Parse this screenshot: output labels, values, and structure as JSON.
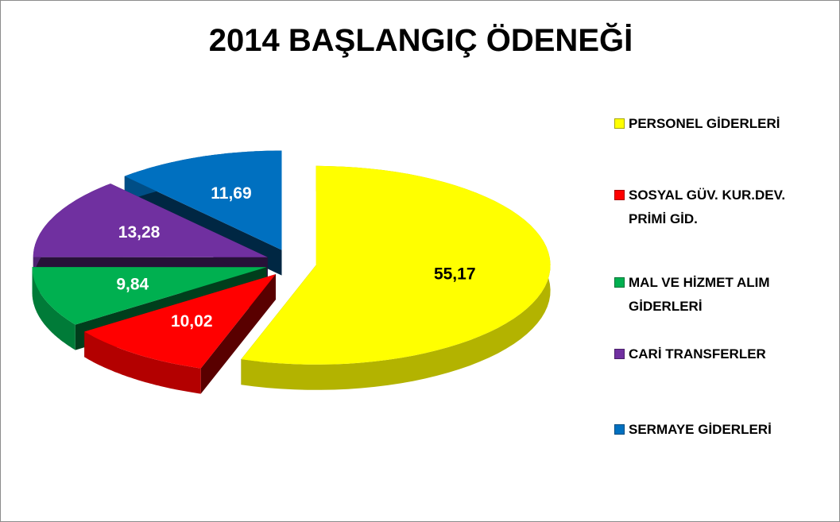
{
  "chart_data": {
    "type": "pie",
    "title": "2014 BAŞLANGIÇ ÖDENEĞİ",
    "categories": [
      "PERSONEL GİDERLERİ",
      "SOSYAL GÜV. KUR.DEV. PRİMİ GİD.",
      "MAL VE HİZMET ALIM GİDERLERİ",
      "CARİ TRANSFERLER",
      "SERMAYE GİDERLERİ"
    ],
    "values": [
      55.17,
      10.02,
      9.84,
      13.28,
      11.69
    ],
    "value_labels": [
      "55,17",
      "10,02",
      "9,84",
      "13,28",
      "11,69"
    ],
    "colors": [
      "#ffff00",
      "#ff0000",
      "#00b050",
      "#7030a0",
      "#0070c0"
    ],
    "legend": "right"
  }
}
